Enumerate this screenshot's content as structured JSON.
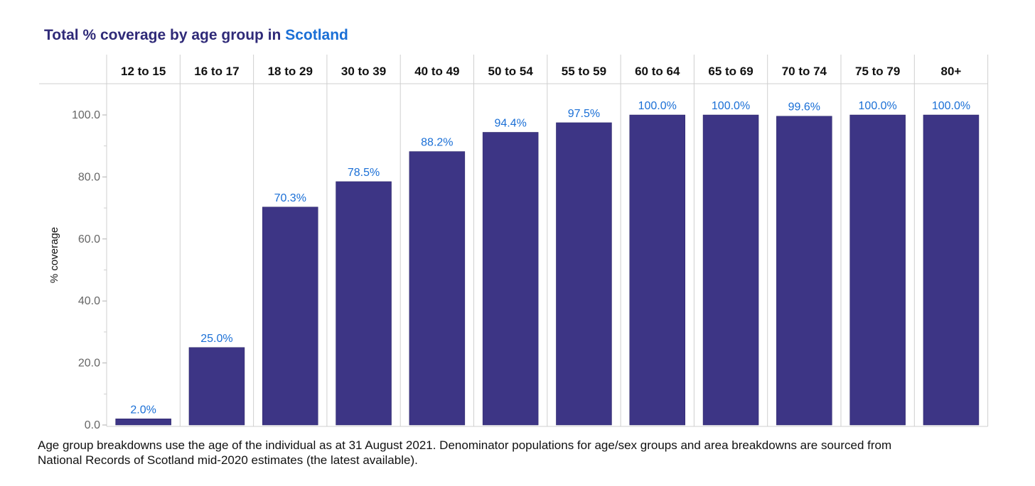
{
  "title": {
    "prefix": "Total % coverage by age group in ",
    "highlight": "Scotland"
  },
  "colors": {
    "bar": "#3d3585",
    "data_label": "#1a6fd6",
    "title": "#2f2a78",
    "title_highlight": "#1a6fd6",
    "grid": "#cfcfcf"
  },
  "chart_data": {
    "type": "bar",
    "categories": [
      "12 to 15",
      "16 to 17",
      "18 to 29",
      "30 to 39",
      "40 to 49",
      "50 to 54",
      "55 to 59",
      "60 to 64",
      "65 to 69",
      "70 to 74",
      "75 to 79",
      "80+"
    ],
    "values": [
      2.0,
      25.0,
      70.3,
      78.5,
      88.2,
      94.4,
      97.5,
      100.0,
      100.0,
      99.6,
      100.0,
      100.0
    ],
    "data_labels": [
      "2.0%",
      "25.0%",
      "70.3%",
      "78.5%",
      "88.2%",
      "94.4%",
      "97.5%",
      "100.0%",
      "100.0%",
      "99.6%",
      "100.0%",
      "100.0%"
    ],
    "ylabel": "% coverage",
    "yticks": [
      0,
      20,
      40,
      60,
      80,
      100
    ],
    "ytick_labels": [
      "0.0",
      "20.0",
      "40.0",
      "60.0",
      "80.0",
      "100.0"
    ],
    "ylim": [
      0,
      110
    ],
    "category_axis": "top",
    "grid": true
  },
  "footnote": {
    "line1": "Age group breakdowns use the age of the individual as at 31 August 2021. Denominator populations for age/sex groups and area breakdowns are sourced from",
    "line2": "National Records of Scotland mid-2020 estimates (the latest available)."
  }
}
